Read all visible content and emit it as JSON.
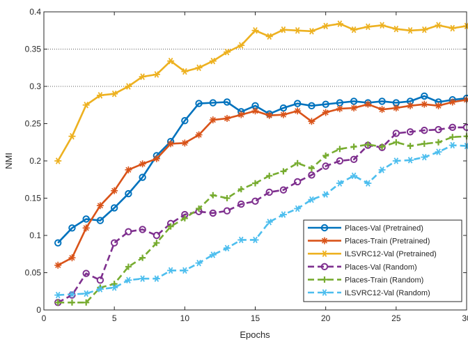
{
  "chart_data": {
    "type": "line",
    "title": "",
    "xlabel": "Epochs",
    "ylabel": "NMI",
    "xlim": [
      0,
      30
    ],
    "ylim": [
      0,
      0.4
    ],
    "xticks": [
      0,
      5,
      10,
      15,
      20,
      25,
      30
    ],
    "yticks": [
      0,
      0.05,
      0.1,
      0.15,
      0.2,
      0.25,
      0.3,
      0.35,
      0.4
    ],
    "xtick_labels": [
      "0",
      "5",
      "10",
      "15",
      "20",
      "25",
      "30"
    ],
    "ytick_labels": [
      "0",
      "0.05",
      "0.1",
      "0.15",
      "0.2",
      "0.25",
      "0.3",
      "0.35",
      "0.4"
    ],
    "grid": "horizontal dotted lines at 0.3 and 0.35",
    "legend_position": "bottom-right",
    "x": [
      1,
      2,
      3,
      4,
      5,
      6,
      7,
      8,
      9,
      10,
      11,
      12,
      13,
      14,
      15,
      16,
      17,
      18,
      19,
      20,
      21,
      22,
      23,
      24,
      25,
      26,
      27,
      28,
      29,
      30
    ],
    "series": [
      {
        "name": "Places-Val (Pretrained)",
        "color": "#0072BD",
        "marker": "circle",
        "dash": "solid",
        "values": [
          0.09,
          0.11,
          0.122,
          0.12,
          0.137,
          0.156,
          0.178,
          0.207,
          0.226,
          0.254,
          0.277,
          0.278,
          0.279,
          0.266,
          0.274,
          0.263,
          0.271,
          0.277,
          0.274,
          0.276,
          0.278,
          0.28,
          0.278,
          0.28,
          0.278,
          0.28,
          0.287,
          0.279,
          0.282,
          0.284
        ]
      },
      {
        "name": "Places-Train (Pretrained)",
        "color": "#D95319",
        "marker": "star",
        "dash": "solid",
        "values": [
          0.06,
          0.07,
          0.11,
          0.14,
          0.16,
          0.188,
          0.196,
          0.203,
          0.223,
          0.224,
          0.235,
          0.255,
          0.257,
          0.262,
          0.267,
          0.261,
          0.262,
          0.267,
          0.253,
          0.265,
          0.27,
          0.271,
          0.276,
          0.269,
          0.271,
          0.274,
          0.276,
          0.274,
          0.279,
          0.282
        ]
      },
      {
        "name": "ILSVRC12-Val (Pretrained)",
        "color": "#EDB120",
        "marker": "asterisk",
        "dash": "solid",
        "values": [
          0.2,
          0.233,
          0.275,
          0.288,
          0.29,
          0.3,
          0.313,
          0.316,
          0.334,
          0.32,
          0.325,
          0.334,
          0.346,
          0.355,
          0.375,
          0.367,
          0.376,
          0.375,
          0.374,
          0.381,
          0.384,
          0.376,
          0.38,
          0.382,
          0.377,
          0.375,
          0.376,
          0.382,
          0.378,
          0.381
        ]
      },
      {
        "name": "Places-Val (Random)",
        "color": "#7E2F8E",
        "marker": "circle",
        "dash": "dashed",
        "values": [
          0.01,
          0.02,
          0.049,
          0.04,
          0.09,
          0.105,
          0.108,
          0.1,
          0.116,
          0.128,
          0.132,
          0.13,
          0.133,
          0.142,
          0.146,
          0.158,
          0.161,
          0.172,
          0.181,
          0.193,
          0.2,
          0.202,
          0.221,
          0.218,
          0.237,
          0.239,
          0.241,
          0.242,
          0.245,
          0.245
        ]
      },
      {
        "name": "Places-Train (Random)",
        "color": "#77AC30",
        "marker": "plus",
        "dash": "dashed",
        "values": [
          0.01,
          0.01,
          0.01,
          0.03,
          0.035,
          0.058,
          0.07,
          0.09,
          0.112,
          0.123,
          0.136,
          0.154,
          0.15,
          0.162,
          0.17,
          0.18,
          0.186,
          0.197,
          0.19,
          0.207,
          0.216,
          0.219,
          0.222,
          0.219,
          0.225,
          0.22,
          0.223,
          0.225,
          0.232,
          0.233
        ]
      },
      {
        "name": "ILSVRC12-Val (Random)",
        "color": "#4DBEEE",
        "marker": "asterisk",
        "dash": "dashed",
        "values": [
          0.02,
          0.021,
          0.022,
          0.028,
          0.03,
          0.04,
          0.042,
          0.042,
          0.053,
          0.053,
          0.063,
          0.074,
          0.083,
          0.094,
          0.094,
          0.118,
          0.128,
          0.136,
          0.148,
          0.155,
          0.17,
          0.18,
          0.17,
          0.188,
          0.2,
          0.201,
          0.205,
          0.212,
          0.221,
          0.22
        ]
      }
    ]
  }
}
